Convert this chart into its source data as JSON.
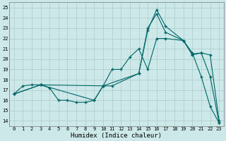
{
  "xlabel": "Humidex (Indice chaleur)",
  "xlim": [
    -0.5,
    23.5
  ],
  "ylim": [
    13.5,
    25.5
  ],
  "xticks": [
    0,
    1,
    2,
    3,
    4,
    5,
    6,
    7,
    8,
    9,
    10,
    11,
    12,
    13,
    14,
    15,
    16,
    17,
    18,
    19,
    20,
    21,
    22,
    23
  ],
  "yticks": [
    14,
    15,
    16,
    17,
    18,
    19,
    20,
    21,
    22,
    23,
    24,
    25
  ],
  "bg_color": "#cce8e8",
  "line_color": "#006666",
  "grid_color": "#aacccc",
  "line1_x": [
    0,
    1,
    2,
    3,
    4,
    5,
    6,
    7,
    8,
    9,
    10,
    11,
    14,
    15,
    16,
    17,
    19,
    20,
    21,
    22,
    23
  ],
  "line1_y": [
    16.6,
    17.4,
    17.5,
    17.5,
    17.2,
    16.0,
    16.0,
    15.8,
    15.8,
    16.0,
    17.4,
    17.4,
    18.6,
    23.0,
    24.4,
    22.6,
    21.8,
    20.6,
    18.3,
    15.4,
    13.8
  ],
  "line2_x": [
    0,
    3,
    10,
    11,
    12,
    13,
    14,
    15,
    16,
    17,
    19,
    20,
    21,
    22,
    23
  ],
  "line2_y": [
    16.6,
    17.5,
    17.4,
    19.0,
    19.0,
    20.2,
    21.0,
    19.0,
    22.0,
    22.0,
    21.8,
    20.5,
    20.6,
    20.4,
    14.0
  ],
  "line3_x": [
    0,
    3,
    9,
    10,
    14,
    15,
    16,
    17,
    19,
    20,
    21,
    22,
    23
  ],
  "line3_y": [
    16.6,
    17.5,
    16.0,
    17.4,
    18.6,
    22.8,
    24.8,
    23.2,
    21.8,
    20.4,
    20.6,
    18.3,
    13.8
  ]
}
